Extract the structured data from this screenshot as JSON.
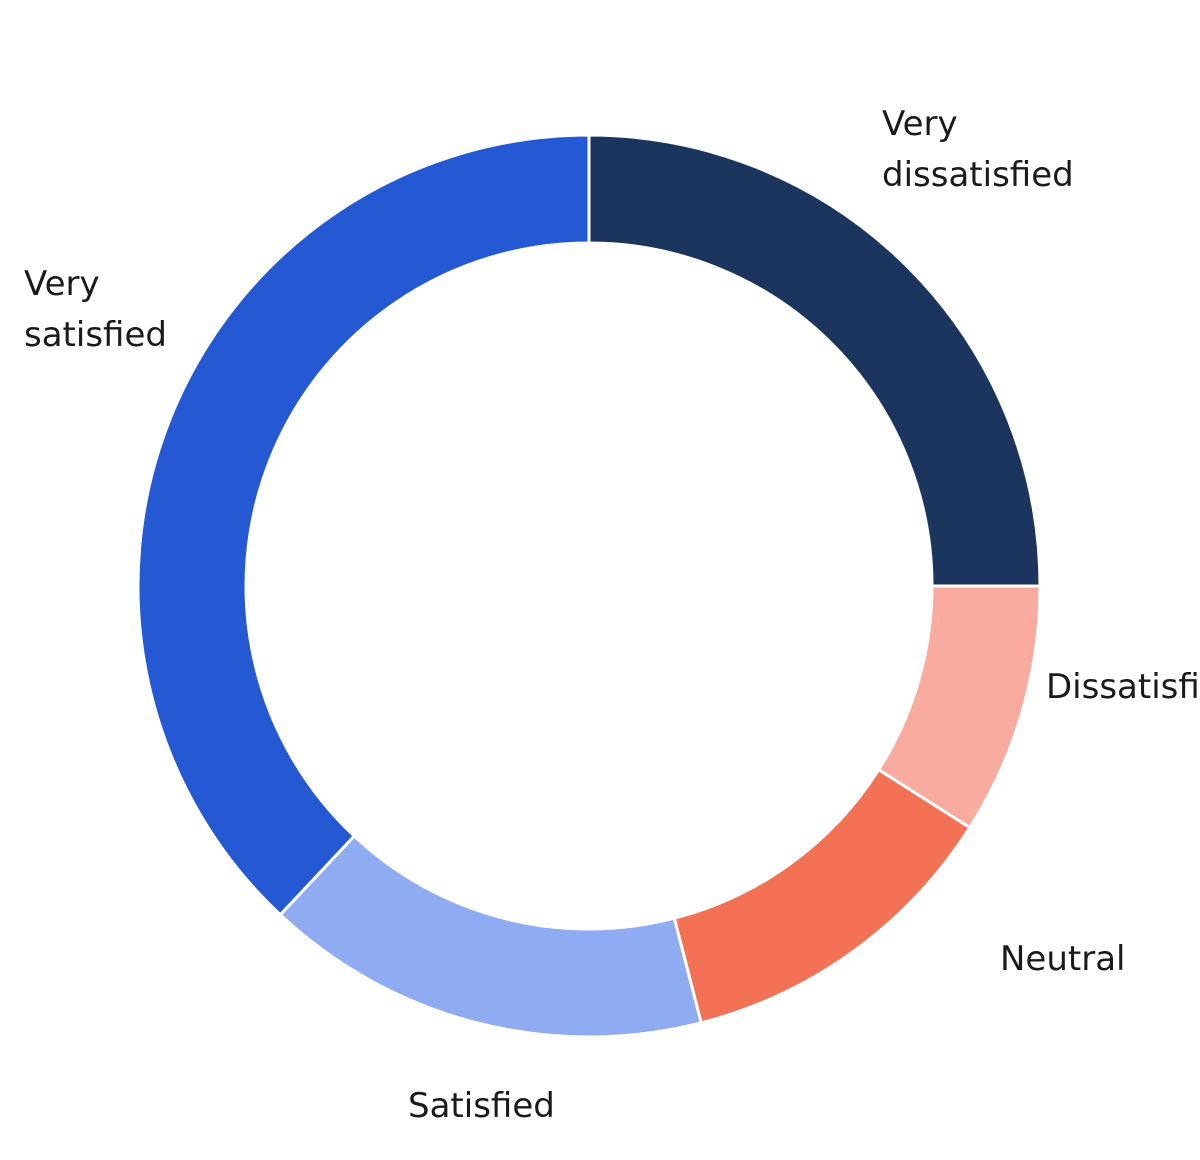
{
  "chart_data": {
    "type": "pie",
    "donut": true,
    "title": "",
    "start": "top",
    "direction": "clockwise",
    "slices": [
      {
        "label": "Very dissatisfied",
        "label_lines": [
          "Very",
          "dissatisfied"
        ],
        "value": 25,
        "color": "#1c355e"
      },
      {
        "label": "Dissatisfied",
        "label_lines": [
          "Dissatisfied"
        ],
        "value": 9,
        "color": "#f9aba0"
      },
      {
        "label": "Neutral",
        "label_lines": [
          "Neutral"
        ],
        "value": 12,
        "color": "#f37255"
      },
      {
        "label": "Satisfied",
        "label_lines": [
          "Satisfied"
        ],
        "value": 16,
        "color": "#8facf3"
      },
      {
        "label": "Very satisfied",
        "label_lines": [
          "Very",
          "satisfied"
        ],
        "value": 38,
        "color": "#2459d3"
      }
    ]
  }
}
